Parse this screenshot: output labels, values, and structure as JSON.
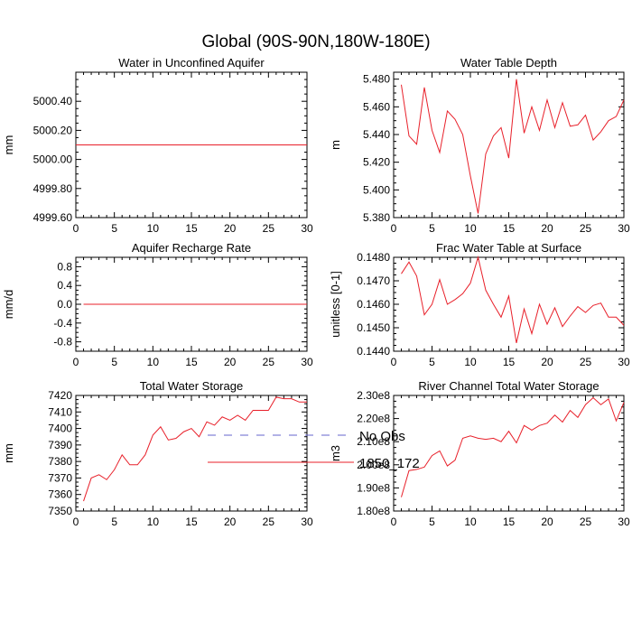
{
  "page_title": "Global (90S-90N,180W-180E)",
  "legend": {
    "entries": [
      {
        "label": "No Obs",
        "color": "#6666cc",
        "style": "dashed"
      },
      {
        "label": "1850_172",
        "color": "#e8202a",
        "style": "solid"
      }
    ]
  },
  "colors": {
    "series": "#e8202a",
    "axis": "#000000"
  },
  "chart_data": [
    {
      "type": "line",
      "title": "Water in Unconfined Aquifer",
      "ylabel": "mm",
      "xlabel": "",
      "xlim": [
        0,
        30
      ],
      "ylim": [
        4999.6,
        5000.6
      ],
      "xticks": [
        0,
        5,
        10,
        15,
        20,
        25,
        30
      ],
      "xtick_labels": [
        "0",
        "5",
        "10",
        "15",
        "20",
        "25",
        "30"
      ],
      "yticks": [
        4999.6,
        4999.8,
        5000.0,
        5000.2,
        5000.4
      ],
      "ytick_labels": [
        "4999.60",
        "4999.80",
        "5000.00",
        "5000.20",
        "5000.40"
      ],
      "series": [
        {
          "name": "1850_172",
          "x": [
            0,
            30
          ],
          "y": [
            5000.1,
            5000.1
          ]
        }
      ]
    },
    {
      "type": "line",
      "title": "Water Table Depth",
      "ylabel": "m",
      "xlabel": "",
      "xlim": [
        0,
        30
      ],
      "ylim": [
        5.38,
        5.485
      ],
      "xticks": [
        0,
        5,
        10,
        15,
        20,
        25,
        30
      ],
      "xtick_labels": [
        "0",
        "5",
        "10",
        "15",
        "20",
        "25",
        "30"
      ],
      "yticks": [
        5.38,
        5.4,
        5.42,
        5.44,
        5.46,
        5.48
      ],
      "ytick_labels": [
        "5.380",
        "5.400",
        "5.420",
        "5.440",
        "5.460",
        "5.480"
      ],
      "series": [
        {
          "name": "1850_172",
          "x": [
            1,
            2,
            3,
            4,
            5,
            6,
            7,
            8,
            9,
            10,
            11,
            12,
            13,
            14,
            15,
            16,
            17,
            18,
            19,
            20,
            21,
            22,
            23,
            24,
            25,
            26,
            27,
            28,
            29,
            30
          ],
          "y": [
            5.476,
            5.439,
            5.433,
            5.474,
            5.443,
            5.427,
            5.457,
            5.451,
            5.44,
            5.41,
            5.383,
            5.426,
            5.439,
            5.445,
            5.423,
            5.48,
            5.441,
            5.46,
            5.443,
            5.465,
            5.445,
            5.463,
            5.446,
            5.447,
            5.454,
            5.436,
            5.442,
            5.45,
            5.453,
            5.465
          ]
        }
      ]
    },
    {
      "type": "line",
      "title": "Aquifer Recharge Rate",
      "ylabel": "mm/d",
      "xlabel": "",
      "xlim": [
        0,
        30
      ],
      "ylim": [
        -1.0,
        1.0
      ],
      "xticks": [
        0,
        5,
        10,
        15,
        20,
        25,
        30
      ],
      "xtick_labels": [
        "0",
        "5",
        "10",
        "15",
        "20",
        "25",
        "30"
      ],
      "yticks": [
        -0.8,
        -0.4,
        0.0,
        0.4,
        0.8
      ],
      "ytick_labels": [
        "-0.8",
        "-0.4",
        "0.0",
        "0.4",
        "0.8"
      ],
      "series": [
        {
          "name": "1850_172",
          "x": [
            1,
            30
          ],
          "y": [
            0,
            0
          ]
        }
      ]
    },
    {
      "type": "line",
      "title": "Frac Water Table at Surface",
      "ylabel": "unitless [0-1]",
      "xlabel": "",
      "xlim": [
        0,
        30
      ],
      "ylim": [
        0.144,
        0.148
      ],
      "xticks": [
        0,
        5,
        10,
        15,
        20,
        25,
        30
      ],
      "xtick_labels": [
        "0",
        "5",
        "10",
        "15",
        "20",
        "25",
        "30"
      ],
      "yticks": [
        0.144,
        0.145,
        0.146,
        0.147,
        0.148
      ],
      "ytick_labels": [
        "0.1440",
        "0.1450",
        "0.1460",
        "0.1470",
        "0.1480"
      ],
      "series": [
        {
          "name": "1850_172",
          "x": [
            1,
            2,
            3,
            4,
            5,
            6,
            7,
            8,
            9,
            10,
            11,
            12,
            13,
            14,
            15,
            16,
            17,
            18,
            19,
            20,
            21,
            22,
            23,
            24,
            25,
            26,
            27,
            28,
            29,
            30
          ],
          "y": [
            0.1473,
            0.1478,
            0.1472,
            0.14555,
            0.146,
            0.14705,
            0.146,
            0.1462,
            0.14645,
            0.1469,
            0.148,
            0.1466,
            0.146,
            0.14545,
            0.14635,
            0.14435,
            0.1458,
            0.14475,
            0.146,
            0.14515,
            0.14585,
            0.14505,
            0.1455,
            0.1459,
            0.14565,
            0.14595,
            0.14605,
            0.14545,
            0.14545,
            0.1451
          ]
        }
      ]
    },
    {
      "type": "line",
      "title": "Total Water Storage",
      "ylabel": "mm",
      "xlabel": "",
      "xlim": [
        0,
        30
      ],
      "ylim": [
        7350,
        7420
      ],
      "xticks": [
        0,
        5,
        10,
        15,
        20,
        25,
        30
      ],
      "xtick_labels": [
        "0",
        "5",
        "10",
        "15",
        "20",
        "25",
        "30"
      ],
      "yticks": [
        7350,
        7360,
        7370,
        7380,
        7390,
        7400,
        7410,
        7420
      ],
      "ytick_labels": [
        "7350",
        "7360",
        "7370",
        "7380",
        "7390",
        "7400",
        "7410",
        "7420"
      ],
      "series": [
        {
          "name": "1850_172",
          "x": [
            1,
            2,
            3,
            4,
            5,
            6,
            7,
            8,
            9,
            10,
            11,
            12,
            13,
            14,
            15,
            16,
            17,
            18,
            19,
            20,
            21,
            22,
            23,
            24,
            25,
            26,
            27,
            28,
            29,
            30
          ],
          "y": [
            7356,
            7370,
            7372,
            7369,
            7375,
            7384,
            7378,
            7378,
            7384,
            7396,
            7401,
            7393,
            7394,
            7398,
            7400,
            7395,
            7404,
            7402,
            7407,
            7405,
            7408,
            7405,
            7411,
            7411,
            7411,
            7419,
            7418,
            7418,
            7416,
            7416
          ]
        }
      ]
    },
    {
      "type": "line",
      "title": "River Channel Total Water Storage",
      "ylabel": "m3",
      "xlabel": "",
      "xlim": [
        0,
        30
      ],
      "ylim": [
        180000000.0,
        230000000.0
      ],
      "xticks": [
        0,
        5,
        10,
        15,
        20,
        25,
        30
      ],
      "xtick_labels": [
        "0",
        "5",
        "10",
        "15",
        "20",
        "25",
        "30"
      ],
      "yticks": [
        180000000.0,
        190000000.0,
        200000000.0,
        210000000.0,
        220000000.0,
        230000000.0
      ],
      "ytick_labels": [
        "1.80e8",
        "1.90e8",
        "2.00e8",
        "2.10e8",
        "2.20e8",
        "2.30e8"
      ],
      "series": [
        {
          "name": "1850_172",
          "x": [
            1,
            2,
            3,
            4,
            5,
            6,
            7,
            8,
            9,
            10,
            11,
            12,
            13,
            14,
            15,
            16,
            17,
            18,
            19,
            20,
            21,
            22,
            23,
            24,
            25,
            26,
            27,
            28,
            29,
            30
          ],
          "y": [
            186000000.0,
            197500000.0,
            198000000.0,
            199000000.0,
            204000000.0,
            206000000.0,
            199500000.0,
            202000000.0,
            211500000.0,
            212500000.0,
            211500000.0,
            211000000.0,
            211500000.0,
            210000000.0,
            214500000.0,
            209500000.0,
            217000000.0,
            215000000.0,
            217000000.0,
            218000000.0,
            221500000.0,
            218500000.0,
            223500000.0,
            220500000.0,
            226000000.0,
            229000000.0,
            226000000.0,
            228500000.0,
            219000000.0,
            227000000.0
          ]
        }
      ]
    }
  ]
}
